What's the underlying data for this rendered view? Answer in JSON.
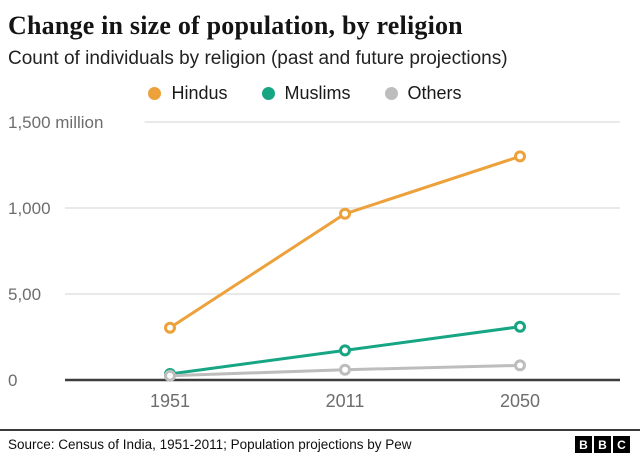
{
  "header": {
    "title": "Change in size of population, by religion",
    "subtitle": "Count of individuals by religion (past and future projections)"
  },
  "chart_data": {
    "type": "line",
    "title": "Change in size of population, by religion",
    "subtitle": "Count of individuals by religion (past and future projections)",
    "x_labels": [
      "1951",
      "2011",
      "2050"
    ],
    "series": [
      {
        "name": "Hindus",
        "color": "#eda13a",
        "values": [
          304,
          966,
          1300
        ]
      },
      {
        "name": "Muslims",
        "color": "#17a683",
        "values": [
          35,
          172,
          310
        ]
      },
      {
        "name": "Others",
        "color": "#bdbdbd",
        "values": [
          25,
          60,
          85
        ]
      }
    ],
    "ylim": [
      0,
      1500
    ],
    "yticks": [
      0,
      500,
      1000,
      1500
    ],
    "ytick_labels": [
      "0",
      "5,00",
      "1,000",
      "1,500 million"
    ],
    "grid": true,
    "legend_position": "top",
    "unit": "million"
  },
  "footer": {
    "source": "Source: Census of India, 1951-2011; Population projections by Pew",
    "logo_letters": [
      "B",
      "B",
      "C"
    ]
  }
}
